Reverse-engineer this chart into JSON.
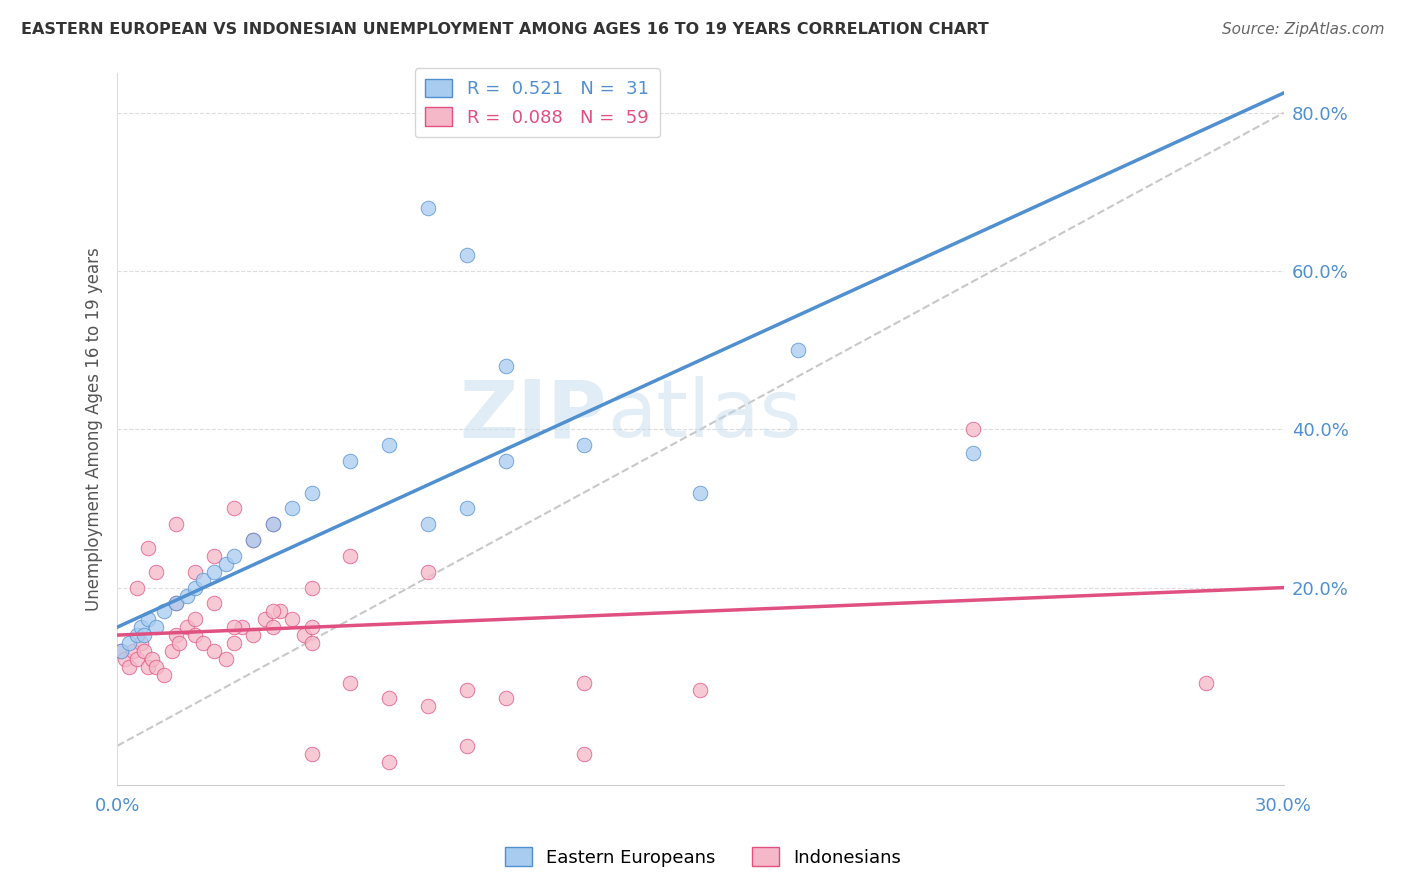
{
  "title": "EASTERN EUROPEAN VS INDONESIAN UNEMPLOYMENT AMONG AGES 16 TO 19 YEARS CORRELATION CHART",
  "source": "Source: ZipAtlas.com",
  "ylabel": "Unemployment Among Ages 16 to 19 years",
  "xlim": [
    0.0,
    0.3
  ],
  "ylim": [
    -0.05,
    0.85
  ],
  "plot_ylim": [
    -0.05,
    0.85
  ],
  "ytick_vals": [
    0.2,
    0.4,
    0.6,
    0.8
  ],
  "ytick_labels": [
    "20.0%",
    "40.0%",
    "60.0%",
    "80.0%"
  ],
  "blue_color": "#A8CCF0",
  "pink_color": "#F5B8C8",
  "line_blue": "#5090D0",
  "line_pink": "#E05080",
  "line_grey": "#BBBBBB",
  "east_x": [
    0.001,
    0.003,
    0.005,
    0.006,
    0.007,
    0.008,
    0.01,
    0.012,
    0.015,
    0.018,
    0.02,
    0.022,
    0.025,
    0.028,
    0.03,
    0.035,
    0.04,
    0.045,
    0.05,
    0.06,
    0.07,
    0.08,
    0.09,
    0.1,
    0.12,
    0.15,
    0.08,
    0.09,
    0.1,
    0.175,
    0.22
  ],
  "east_y": [
    0.12,
    0.13,
    0.14,
    0.15,
    0.14,
    0.16,
    0.15,
    0.17,
    0.18,
    0.19,
    0.2,
    0.21,
    0.22,
    0.23,
    0.24,
    0.26,
    0.28,
    0.3,
    0.32,
    0.36,
    0.38,
    0.28,
    0.3,
    0.36,
    0.38,
    0.32,
    0.68,
    0.62,
    0.48,
    0.5,
    0.37
  ],
  "indo_x": [
    0.001,
    0.002,
    0.003,
    0.004,
    0.005,
    0.006,
    0.007,
    0.008,
    0.009,
    0.01,
    0.012,
    0.014,
    0.015,
    0.016,
    0.018,
    0.02,
    0.022,
    0.025,
    0.028,
    0.03,
    0.032,
    0.035,
    0.038,
    0.04,
    0.042,
    0.045,
    0.048,
    0.05,
    0.005,
    0.008,
    0.01,
    0.015,
    0.02,
    0.025,
    0.03,
    0.035,
    0.04,
    0.05,
    0.06,
    0.07,
    0.08,
    0.09,
    0.1,
    0.12,
    0.15,
    0.05,
    0.07,
    0.09,
    0.12,
    0.06,
    0.08,
    0.04,
    0.03,
    0.02,
    0.015,
    0.025,
    0.05,
    0.22,
    0.28
  ],
  "indo_y": [
    0.12,
    0.11,
    0.1,
    0.12,
    0.11,
    0.13,
    0.12,
    0.1,
    0.11,
    0.1,
    0.09,
    0.12,
    0.14,
    0.13,
    0.15,
    0.14,
    0.13,
    0.12,
    0.11,
    0.13,
    0.15,
    0.14,
    0.16,
    0.15,
    0.17,
    0.16,
    0.14,
    0.13,
    0.2,
    0.25,
    0.22,
    0.28,
    0.22,
    0.18,
    0.3,
    0.26,
    0.28,
    0.2,
    0.08,
    0.06,
    0.05,
    0.07,
    0.06,
    0.08,
    0.07,
    -0.01,
    -0.02,
    0.0,
    -0.01,
    0.24,
    0.22,
    0.17,
    0.15,
    0.16,
    0.18,
    0.24,
    0.15,
    0.4,
    0.08
  ],
  "blue_line_x": [
    0.0,
    0.2
  ],
  "blue_line_y": [
    0.15,
    0.6
  ],
  "pink_line_x": [
    0.0,
    0.3
  ],
  "pink_line_y": [
    0.14,
    0.2
  ],
  "grey_line_x": [
    0.0,
    0.3
  ],
  "grey_line_y": [
    0.0,
    0.8
  ]
}
